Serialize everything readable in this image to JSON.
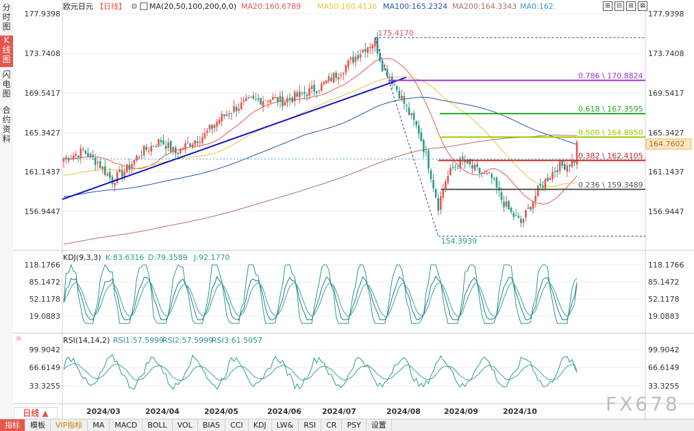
{
  "side_tabs": [
    {
      "label": "分\n时\n图",
      "active": false
    },
    {
      "label": "K\n线\n图",
      "active": true
    },
    {
      "label": "闪\n电\n图",
      "active": false
    },
    {
      "label": "合\n约\n资\n料",
      "active": false
    }
  ],
  "header": {
    "symbol": "欧元日元",
    "period": "【日线】",
    "gear": "⚙",
    "ma_label": "MA(20,50,100,200,0,0)",
    "ma20": "MA20:160.6789",
    "ma50": "MA50:160.4136",
    "ma100": "MA100:165.2324",
    "ma200": "MA200:164.3343",
    "ma0": "MA0:162."
  },
  "toolbar_icons": [
    "⊞",
    "⊟",
    "⊞",
    "⊠"
  ],
  "price_axis_labels": [
    "177.9398",
    "173.7408",
    "169.5417",
    "165.3427",
    "161.1437",
    "156.9447"
  ],
  "left_price_labels": [
    "177.9398",
    "173.7408",
    "169.5417",
    "165.3427",
    "161.1437",
    "156.9447"
  ],
  "current_price": "164.7602",
  "annotations": {
    "high": "175.4170",
    "low": "154.3939"
  },
  "fib_levels": [
    {
      "label": "0.786 \\ 170.8824",
      "color": "#9a33c8"
    },
    {
      "label": "0.618 \\ 167.3595",
      "color": "#22aa22"
    },
    {
      "label": "0.500 \\ 164.8850",
      "color": "#99cc00"
    },
    {
      "label": "0.382 \\ 162.4105",
      "color": "#cc2222"
    },
    {
      "label": "0.236 \\ 159.3489",
      "color": "#555555"
    }
  ],
  "kdj": {
    "title": "KDJ(9,3,3)",
    "k": "K:83.6316",
    "d": "D:79.3589",
    "j": "J:92.1770",
    "axis": [
      "118.1766",
      "85.1472",
      "52.1178",
      "19.0883"
    ]
  },
  "rsi": {
    "title": "RSI(14,14,2)",
    "rsi1": "RSI1:57.5999",
    "rsi2": "RSI2:57.5999",
    "rsi3": "RSI3:61.5057",
    "axis": [
      "99.9042",
      "66.6149",
      "33.3255"
    ]
  },
  "date_labels": [
    "2024/03",
    "2024/04",
    "2024/05",
    "2024/06",
    "2024/07",
    "2024/08",
    "2024/09",
    "2024/10"
  ],
  "period_button": "日线 ▲",
  "bottom_tabs": [
    "指标",
    "模板",
    "VIP指标",
    "MA",
    "MACD",
    "BOLL",
    "VOL",
    "BIAS",
    "CCI",
    "KDJ",
    "LW&",
    "RSI",
    "CR",
    "PSY",
    "设置"
  ],
  "watermark": "FX678",
  "colors": {
    "up": "#e8554b",
    "down": "#2a9a8a",
    "ma20": "#e8554b",
    "ma50": "#e8c43a",
    "ma100": "#2255aa",
    "ma200": "#b07060",
    "trend": "#1111cc"
  },
  "chart_data": {
    "type": "candlestick",
    "title": "欧元日元 日线",
    "ylim": [
      153.5,
      178.5
    ],
    "x_start": "2024/02/15",
    "fib_prices": [
      170.8824,
      167.3595,
      164.885,
      162.4105,
      159.3489
    ],
    "fib_ratios": [
      0.786,
      0.618,
      0.5,
      0.382,
      0.236
    ],
    "high_price": 175.417,
    "low_price": 154.3939,
    "last_price": 164.7602,
    "ma": {
      "MA20": 160.6789,
      "MA50": 160.4136,
      "MA100": 165.2324,
      "MA200": 164.3343
    },
    "kdj_last": {
      "K": 83.6316,
      "D": 79.3589,
      "J": 92.177
    },
    "rsi_last": {
      "RSI1": 57.5999,
      "RSI2": 57.5999,
      "RSI3": 61.5057
    },
    "close_waypoints": [
      [
        0,
        162.6
      ],
      [
        8,
        163.4
      ],
      [
        14,
        162.2
      ],
      [
        20,
        160.3
      ],
      [
        26,
        161.5
      ],
      [
        32,
        163.3
      ],
      [
        40,
        164.5
      ],
      [
        46,
        163.2
      ],
      [
        52,
        164.3
      ],
      [
        58,
        165.1
      ],
      [
        64,
        166.8
      ],
      [
        70,
        167.9
      ],
      [
        76,
        168.6
      ],
      [
        84,
        169.0
      ],
      [
        90,
        168.7
      ],
      [
        98,
        169.4
      ],
      [
        106,
        170.3
      ],
      [
        112,
        171.5
      ],
      [
        118,
        172.9
      ],
      [
        124,
        174.4
      ],
      [
        128,
        175.0
      ],
      [
        131,
        172.4
      ],
      [
        134,
        171.4
      ],
      [
        138,
        169.5
      ],
      [
        142,
        167.4
      ],
      [
        146,
        165.5
      ],
      [
        150,
        162.0
      ],
      [
        154,
        157.6
      ],
      [
        157,
        160.3
      ],
      [
        160,
        161.6
      ],
      [
        164,
        162.4
      ],
      [
        168,
        161.6
      ],
      [
        172,
        161.0
      ],
      [
        176,
        160.5
      ],
      [
        180,
        158.3
      ],
      [
        184,
        156.8
      ],
      [
        188,
        155.8
      ],
      [
        191,
        157.2
      ],
      [
        195,
        159.2
      ],
      [
        199,
        160.6
      ],
      [
        203,
        161.7
      ],
      [
        207,
        162.0
      ],
      [
        211,
        162.6
      ]
    ]
  }
}
